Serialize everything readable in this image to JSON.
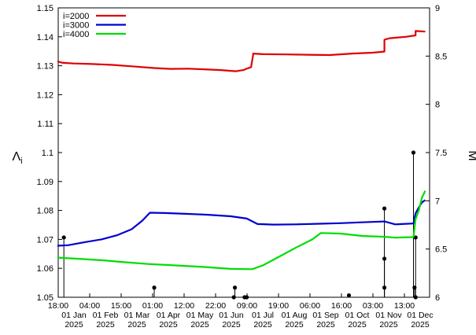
{
  "chart_data": {
    "type": "line",
    "ylabel_left": {
      "main": "Λ",
      "sub": "i"
    },
    "ylabel_right": "M",
    "xaxis": {
      "ticks": [
        {
          "time": "18:00",
          "date": "01 Jan",
          "year": "2025"
        },
        {
          "time": "04:00",
          "date": "01 Feb",
          "year": "2025"
        },
        {
          "time": "15:00",
          "date": "01 Mar",
          "year": "2025"
        },
        {
          "time": "01:00",
          "date": "01 Apr",
          "year": "2025"
        },
        {
          "time": "12:00",
          "date": "01 May",
          "year": "2025"
        },
        {
          "time": "22:00",
          "date": "01 Jun",
          "year": "2025"
        },
        {
          "time": "09:00",
          "date": "01 Jul",
          "year": "2025"
        },
        {
          "time": "19:00",
          "date": "01 Aug",
          "year": "2025"
        },
        {
          "time": "06:00",
          "date": "01 Sep",
          "year": "2025"
        },
        {
          "time": "16:00",
          "date": "01 Oct",
          "year": "2025"
        },
        {
          "time": "03:00",
          "date": "01 Nov",
          "year": "2025"
        },
        {
          "time": "13:00",
          "date": "01 Dec",
          "year": "2025"
        }
      ]
    },
    "y_left": {
      "range": [
        1.05,
        1.15
      ],
      "ticks": [
        "1.05",
        "1.06",
        "1.07",
        "1.08",
        "1.09",
        "1.1",
        "1.11",
        "1.12",
        "1.13",
        "1.14",
        "1.15"
      ]
    },
    "y_right": {
      "range": [
        6,
        9
      ],
      "ticks": [
        "6",
        "6.5",
        "7",
        "7.5",
        "8",
        "8.5",
        "9"
      ]
    },
    "series": [
      {
        "name": "i=2000",
        "color": "#e00000",
        "points": [
          [
            "2024-12-31",
            1.1315
          ],
          [
            "2025-01-05",
            1.131
          ],
          [
            "2025-01-15",
            1.1308
          ],
          [
            "2025-02-01",
            1.1306
          ],
          [
            "2025-02-20",
            1.1303
          ],
          [
            "2025-03-10",
            1.1298
          ],
          [
            "2025-03-31",
            1.1292
          ],
          [
            "2025-04-15",
            1.1289
          ],
          [
            "2025-05-01",
            1.129
          ],
          [
            "2025-05-20",
            1.1287
          ],
          [
            "2025-06-01",
            1.1285
          ],
          [
            "2025-06-15",
            1.1281
          ],
          [
            "2025-06-22",
            1.1285
          ],
          [
            "2025-06-25",
            1.129
          ],
          [
            "2025-06-29",
            1.1295
          ],
          [
            "2025-07-01",
            1.1339
          ],
          [
            "2025-07-01",
            1.1342
          ],
          [
            "2025-07-10",
            1.134
          ],
          [
            "2025-08-01",
            1.1339
          ],
          [
            "2025-08-20",
            1.1338
          ],
          [
            "2025-09-10",
            1.1337
          ],
          [
            "2025-10-01",
            1.1342
          ],
          [
            "2025-10-20",
            1.1345
          ],
          [
            "2025-10-31",
            1.1349
          ],
          [
            "2025-10-31",
            1.139
          ],
          [
            "2025-11-05",
            1.1395
          ],
          [
            "2025-11-20",
            1.14
          ],
          [
            "2025-11-29",
            1.1405
          ],
          [
            "2025-11-29",
            1.142
          ],
          [
            "2025-12-08",
            1.1418
          ]
        ]
      },
      {
        "name": "i=3000",
        "color": "#0000d0",
        "points": [
          [
            "2024-12-31",
            1.0678
          ],
          [
            "2025-01-10",
            1.068
          ],
          [
            "2025-01-25",
            1.069
          ],
          [
            "2025-02-10",
            1.07
          ],
          [
            "2025-02-25",
            1.0715
          ],
          [
            "2025-03-10",
            1.0735
          ],
          [
            "2025-03-20",
            1.0765
          ],
          [
            "2025-03-27",
            1.0792
          ],
          [
            "2025-04-10",
            1.0791
          ],
          [
            "2025-05-01",
            1.0788
          ],
          [
            "2025-05-20",
            1.0785
          ],
          [
            "2025-06-10",
            1.078
          ],
          [
            "2025-06-25",
            1.0772
          ],
          [
            "2025-07-05",
            1.0753
          ],
          [
            "2025-07-20",
            1.0751
          ],
          [
            "2025-08-10",
            1.0752
          ],
          [
            "2025-09-01",
            1.0754
          ],
          [
            "2025-09-20",
            1.0756
          ],
          [
            "2025-10-10",
            1.0759
          ],
          [
            "2025-10-31",
            1.0762
          ],
          [
            "2025-11-10",
            1.0752
          ],
          [
            "2025-11-27",
            1.0755
          ],
          [
            "2025-11-29",
            1.079
          ],
          [
            "2025-12-02",
            1.081
          ],
          [
            "2025-12-05",
            1.0828
          ],
          [
            "2025-12-08",
            1.0836
          ]
        ]
      },
      {
        "name": "i=4000",
        "color": "#00dd00",
        "points": [
          [
            "2024-12-31",
            1.0637
          ],
          [
            "2025-01-20",
            1.0633
          ],
          [
            "2025-02-10",
            1.0628
          ],
          [
            "2025-03-01",
            1.0622
          ],
          [
            "2025-03-25",
            1.0615
          ],
          [
            "2025-04-20",
            1.061
          ],
          [
            "2025-05-15",
            1.0605
          ],
          [
            "2025-06-10",
            1.0598
          ],
          [
            "2025-06-30",
            1.0597
          ],
          [
            "2025-07-10",
            1.061
          ],
          [
            "2025-07-25",
            1.064
          ],
          [
            "2025-08-10",
            1.0672
          ],
          [
            "2025-08-25",
            1.07
          ],
          [
            "2025-09-02",
            1.0722
          ],
          [
            "2025-09-20",
            1.072
          ],
          [
            "2025-10-10",
            1.0712
          ],
          [
            "2025-10-31",
            1.0709
          ],
          [
            "2025-11-10",
            1.0706
          ],
          [
            "2025-11-27",
            1.0708
          ],
          [
            "2025-11-29",
            1.077
          ],
          [
            "2025-12-02",
            1.08
          ],
          [
            "2025-12-05",
            1.0845
          ],
          [
            "2025-12-08",
            1.0868
          ]
        ]
      }
    ],
    "events": {
      "axis": "right",
      "color": "#000000",
      "points": [
        [
          "2025-01-06",
          6.62
        ],
        [
          "2025-03-31",
          6.1
        ],
        [
          "2025-06-13",
          6.0
        ],
        [
          "2025-06-14",
          6.1
        ],
        [
          "2025-06-23",
          6.0
        ],
        [
          "2025-06-25",
          6.0
        ],
        [
          "2025-09-28",
          6.02
        ],
        [
          "2025-10-31",
          6.1
        ],
        [
          "2025-10-31",
          6.4
        ],
        [
          "2025-10-31",
          6.92
        ],
        [
          "2025-11-27",
          7.5
        ],
        [
          "2025-11-28",
          6.1
        ],
        [
          "2025-11-29",
          6.0
        ],
        [
          "2025-11-29",
          6.62
        ]
      ]
    },
    "legend_position": "top-left"
  }
}
